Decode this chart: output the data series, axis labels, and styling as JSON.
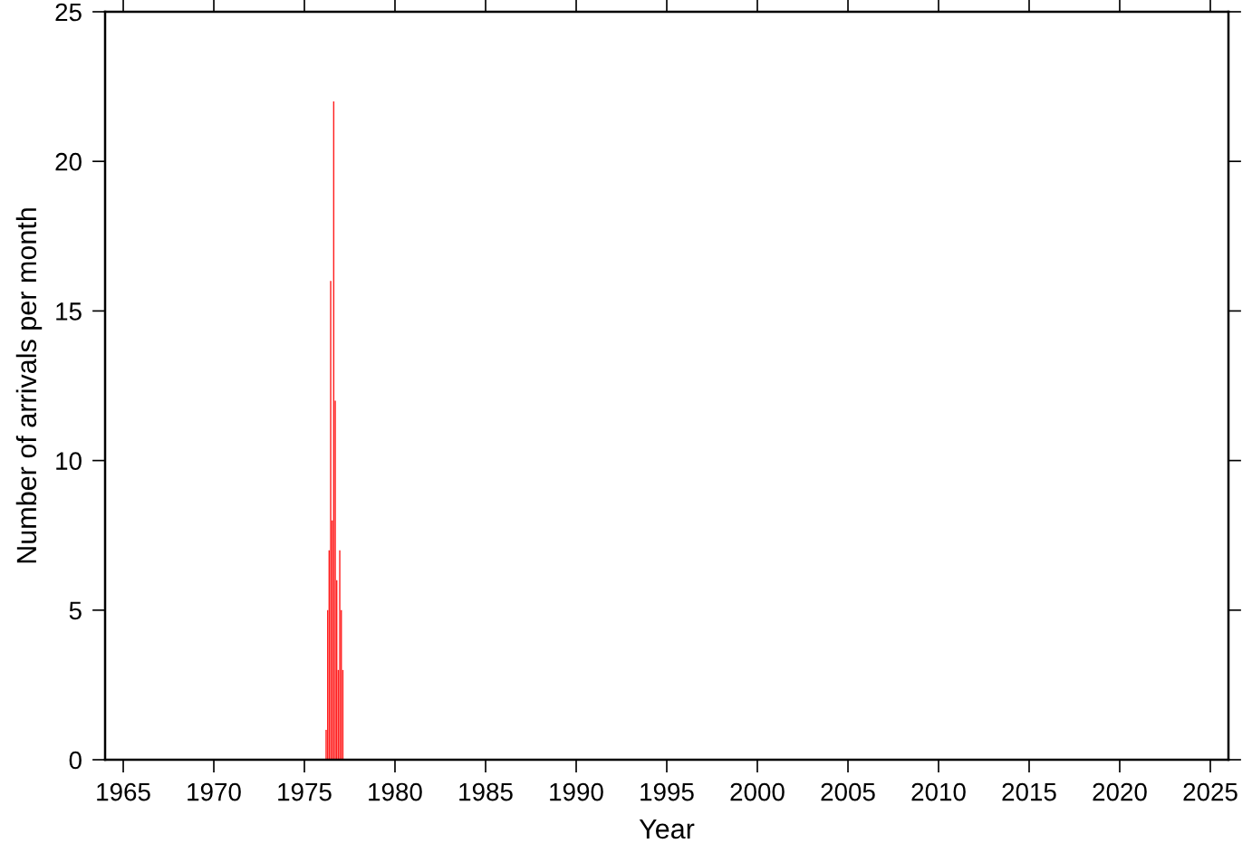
{
  "chart_data": {
    "type": "bar",
    "xlabel": "Year",
    "ylabel": "Number of arrivals per month",
    "x": [
      "1976-03",
      "1976-04",
      "1976-05",
      "1976-06",
      "1976-07",
      "1976-08",
      "1976-09",
      "1976-10",
      "1976-11",
      "1976-12",
      "1977-01",
      "1977-02"
    ],
    "values": [
      1,
      5,
      7,
      16,
      8,
      22,
      12,
      6,
      3,
      7,
      5,
      3
    ],
    "color": "#ff2020",
    "xlim": [
      "1964-01-01",
      "2026-01-01"
    ],
    "xticks": [
      "1965",
      "1970",
      "1975",
      "1980",
      "1985",
      "1990",
      "1995",
      "2000",
      "2005",
      "2010",
      "2015",
      "2020",
      "2025"
    ],
    "ylim": [
      0,
      25
    ],
    "yticks": [
      0,
      5,
      10,
      15,
      20,
      25
    ],
    "grid": false,
    "legend": false
  }
}
